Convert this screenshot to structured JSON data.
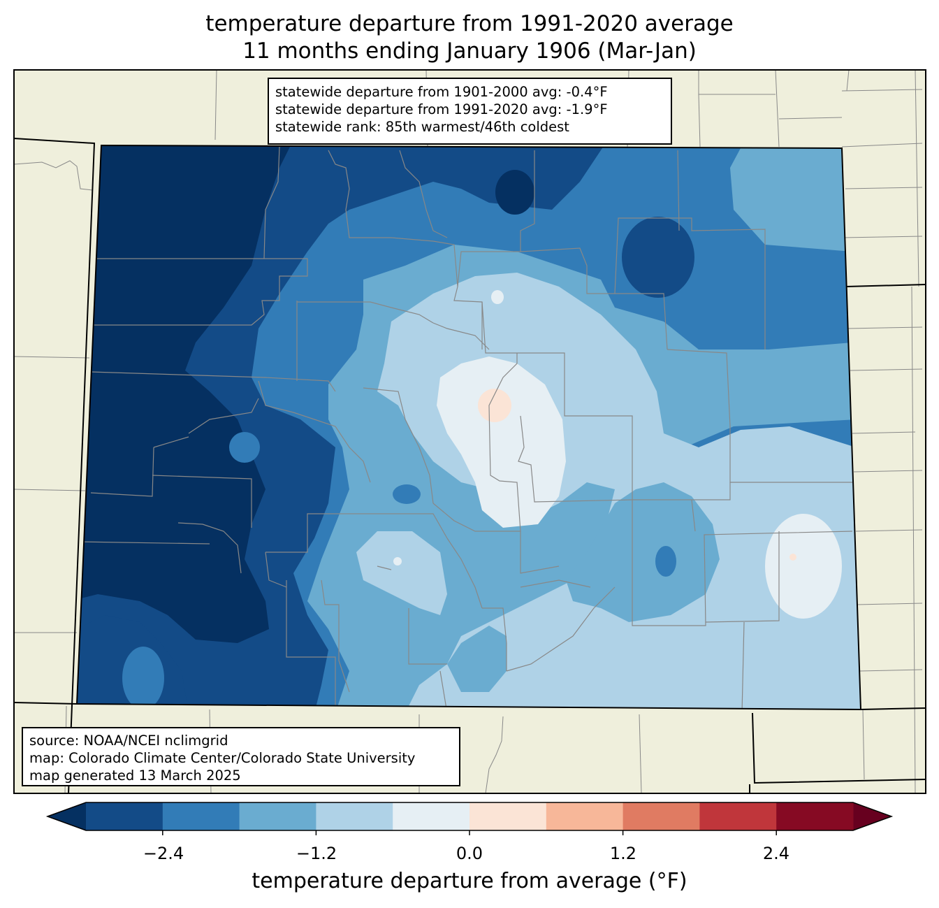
{
  "title": {
    "line1": "temperature departure from 1991-2020 average",
    "line2": "11 months ending January 1906 (Mar-Jan)"
  },
  "stats_box": {
    "line1": "statewide departure from 1901-2000 avg: -0.4°F",
    "line2": "statewide departure from 1991-2020 avg: -1.9°F",
    "line3": "statewide rank: 85th warmest/46th coldest"
  },
  "source_box": {
    "line1": "source: NOAA/NCEI nclimgrid",
    "line2": "map: Colorado Climate Center/Colorado State University",
    "line3": "map generated 13 March 2025"
  },
  "colorbar": {
    "label": "temperature departure from average (°F)",
    "ticks": [
      "−2.4",
      "−1.2",
      "0.0",
      "1.2",
      "2.4"
    ],
    "bins": [
      {
        "min": -3.0,
        "max": -2.4,
        "color": "#134b87"
      },
      {
        "min": -2.4,
        "max": -1.8,
        "color": "#327cb7"
      },
      {
        "min": -1.8,
        "max": -1.2,
        "color": "#6aacd0"
      },
      {
        "min": -1.2,
        "max": -0.6,
        "color": "#afd2e7"
      },
      {
        "min": -0.6,
        "max": 0.0,
        "color": "#e6eff4"
      },
      {
        "min": 0.0,
        "max": 0.6,
        "color": "#fbe4d6"
      },
      {
        "min": 0.6,
        "max": 1.2,
        "color": "#f7b799"
      },
      {
        "min": 1.2,
        "max": 1.8,
        "color": "#e07b62"
      },
      {
        "min": 1.8,
        "max": 2.4,
        "color": "#c0363b"
      },
      {
        "min": 2.4,
        "max": 3.0,
        "color": "#860a23"
      }
    ],
    "under_color": "#053061",
    "over_color": "#67001f"
  },
  "colors": {
    "land_background": "#efefdc",
    "county_lines": "#888888",
    "state_lines": "#000000"
  }
}
